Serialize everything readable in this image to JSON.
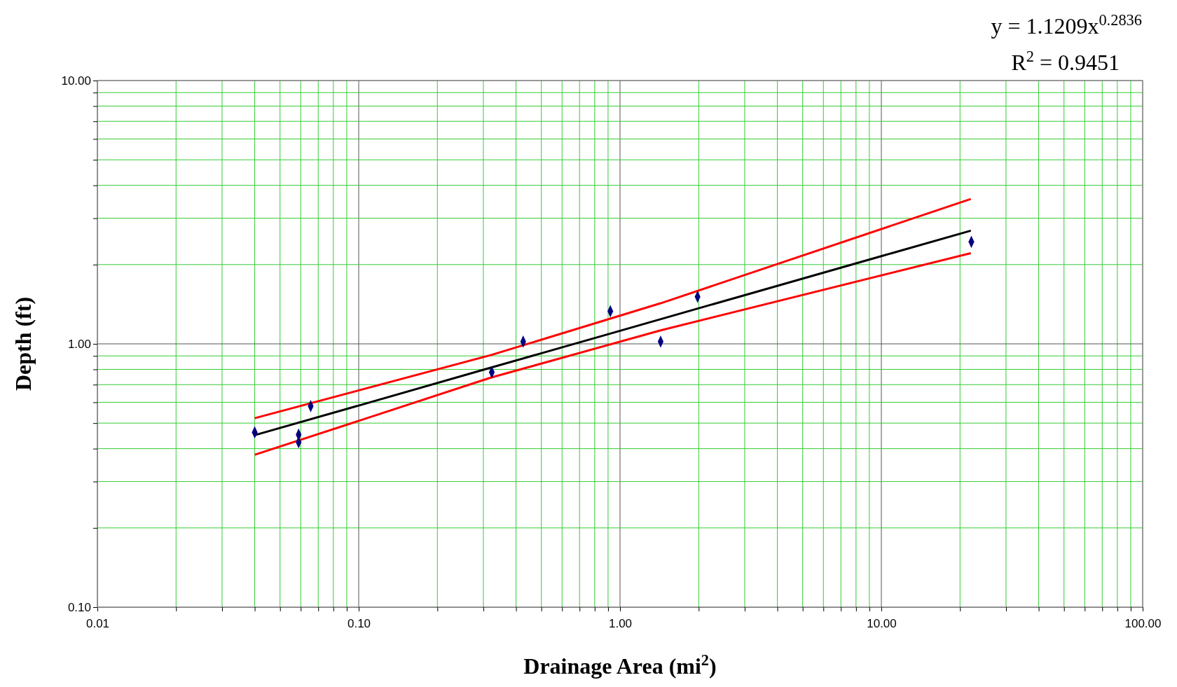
{
  "chart_data": {
    "type": "scatter",
    "xlabel": "Drainage Area (mi$^{2}$)",
    "ylabel": "Depth (ft)",
    "log": "xy",
    "grid": true,
    "xlim": [
      0.01,
      100
    ],
    "xticks": [
      {
        "value": 0.01,
        "label": "0.01"
      },
      {
        "value": 0.02,
        "label": null
      },
      {
        "value": 0.03,
        "label": null
      },
      {
        "value": 0.04,
        "label": null
      },
      {
        "value": 0.05,
        "label": null
      },
      {
        "value": 0.06,
        "label": null
      },
      {
        "value": 0.07,
        "label": null
      },
      {
        "value": 0.08,
        "label": null
      },
      {
        "value": 0.09,
        "label": null
      },
      {
        "value": 0.1,
        "label": "0.10"
      },
      {
        "value": 0.2,
        "label": null
      },
      {
        "value": 0.3,
        "label": null
      },
      {
        "value": 0.4,
        "label": null
      },
      {
        "value": 0.5,
        "label": null
      },
      {
        "value": 0.6,
        "label": null
      },
      {
        "value": 0.7,
        "label": null
      },
      {
        "value": 0.8,
        "label": null
      },
      {
        "value": 0.9,
        "label": null
      },
      {
        "value": 1,
        "label": "1.00"
      },
      {
        "value": 2,
        "label": null
      },
      {
        "value": 3,
        "label": null
      },
      {
        "value": 4,
        "label": null
      },
      {
        "value": 5,
        "label": null
      },
      {
        "value": 6,
        "label": null
      },
      {
        "value": 7,
        "label": null
      },
      {
        "value": 8,
        "label": null
      },
      {
        "value": 9,
        "label": null
      },
      {
        "value": 10,
        "label": "10.00"
      },
      {
        "value": 20,
        "label": null
      },
      {
        "value": 30,
        "label": null
      },
      {
        "value": 40,
        "label": null
      },
      {
        "value": 50,
        "label": null
      },
      {
        "value": 60,
        "label": null
      },
      {
        "value": 70,
        "label": null
      },
      {
        "value": 80,
        "label": null
      },
      {
        "value": 90,
        "label": null
      },
      {
        "value": 100,
        "label": "100.00"
      }
    ],
    "ylim": [
      0.1,
      10
    ],
    "yticks": [
      {
        "value": 0.1,
        "label": "0.10"
      },
      {
        "value": 0.2,
        "label": null
      },
      {
        "value": 0.3,
        "label": null
      },
      {
        "value": 0.4,
        "label": null
      },
      {
        "value": 0.5,
        "label": null
      },
      {
        "value": 0.6,
        "label": null
      },
      {
        "value": 0.7,
        "label": null
      },
      {
        "value": 0.8,
        "label": null
      },
      {
        "value": 0.9,
        "label": null
      },
      {
        "value": 1,
        "label": "1.00"
      },
      {
        "value": 2,
        "label": null
      },
      {
        "value": 3,
        "label": null
      },
      {
        "value": 4,
        "label": null
      },
      {
        "value": 5,
        "label": null
      },
      {
        "value": 6,
        "label": null
      },
      {
        "value": 7,
        "label": null
      },
      {
        "value": 8,
        "label": null
      },
      {
        "value": 9,
        "label": null
      },
      {
        "value": 10,
        "label": "10.00"
      }
    ],
    "annotations": [
      "y = 1.1209x$^{0.2836}$",
      "R$^{2}$ = 0.9451"
    ],
    "series": [
      {
        "type": "line",
        "color": "#ff0000",
        "marker": "none",
        "x": [
          0.04,
          0.32,
          1.43,
          22
        ],
        "values": [
          0.522,
          0.906,
          1.426,
          3.55
        ]
      },
      {
        "type": "line",
        "color": "#ff0000",
        "marker": "none",
        "x": [
          0.04,
          0.32,
          1.43,
          22
        ],
        "values": [
          0.379,
          0.744,
          1.125,
          2.21
        ]
      },
      {
        "type": "line",
        "color": "#000000",
        "marker": "none",
        "x": [
          0.04,
          0.1,
          0.3,
          1,
          3,
          10,
          22
        ],
        "values": [
          0.45,
          0.583,
          0.797,
          1.121,
          1.531,
          2.153,
          2.69
        ]
      },
      {
        "color": "#000080",
        "marker": "diamond",
        "x": [
          0.04,
          0.0589,
          0.0589,
          0.0655,
          0.323,
          0.426,
          0.918,
          1.43,
          1.98,
          22.1
        ],
        "values": [
          0.461,
          0.452,
          0.423,
          0.58,
          0.78,
          1.02,
          1.33,
          1.02,
          1.51,
          2.44
        ]
      }
    ]
  }
}
